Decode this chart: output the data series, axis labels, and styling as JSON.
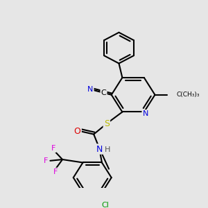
{
  "background_color": "#e6e6e6",
  "atom_colors": {
    "N": "#0000dd",
    "O": "#dd0000",
    "S": "#bbbb00",
    "Cl": "#009900",
    "F": "#dd00dd",
    "C": "#000000",
    "H": "#555555"
  },
  "bond_color": "#000000",
  "bond_width": 1.5,
  "figsize": [
    3.0,
    3.0
  ],
  "dpi": 100
}
